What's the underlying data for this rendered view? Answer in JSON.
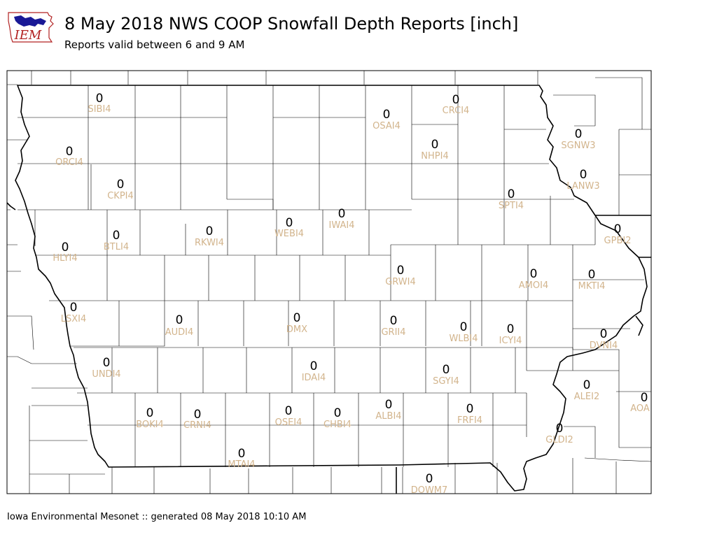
{
  "header": {
    "title": "8 May 2018 NWS COOP Snowfall Depth Reports [inch]",
    "subtitle": "Reports valid between 6 and 9 AM"
  },
  "logo": {
    "text": "IEM",
    "color": "#b22222",
    "state_color": "#00008b"
  },
  "footer": {
    "text": "Iowa Environmental Mesonet :: generated 08 May 2018 10:10 AM"
  },
  "map": {
    "label_color": "#d2b48c",
    "value_color": "#000000",
    "stations": [
      {
        "id": "SIBI4",
        "value": "0"
      },
      {
        "id": "CRCI4",
        "value": "0"
      },
      {
        "id": "OSAI4",
        "value": "0"
      },
      {
        "id": "SGNW3",
        "value": "0"
      },
      {
        "id": "NHPI4",
        "value": "0"
      },
      {
        "id": "ORCI4",
        "value": "0"
      },
      {
        "id": "LANW3",
        "value": "0"
      },
      {
        "id": "CKPI4",
        "value": "0"
      },
      {
        "id": "SPTI4",
        "value": "0"
      },
      {
        "id": "IWAI4",
        "value": "0"
      },
      {
        "id": "WEBI4",
        "value": "0"
      },
      {
        "id": "GPBI2",
        "value": "0"
      },
      {
        "id": "RKWI4",
        "value": "0"
      },
      {
        "id": "BTLI4",
        "value": "0"
      },
      {
        "id": "HLYI4",
        "value": "0"
      },
      {
        "id": "GRWI4",
        "value": "0"
      },
      {
        "id": "AMOI4",
        "value": "0"
      },
      {
        "id": "MKTI4",
        "value": "0"
      },
      {
        "id": "LSXI4",
        "value": "0"
      },
      {
        "id": "DMX",
        "value": "0"
      },
      {
        "id": "AUDI4",
        "value": "0"
      },
      {
        "id": "GRII4",
        "value": "0"
      },
      {
        "id": "WLBI4",
        "value": "0"
      },
      {
        "id": "ICYI4",
        "value": "0"
      },
      {
        "id": "DVNI4",
        "value": "0"
      },
      {
        "id": "UNDI4",
        "value": "0"
      },
      {
        "id": "IDAI4",
        "value": "0"
      },
      {
        "id": "SGYI4",
        "value": "0"
      },
      {
        "id": "ALEI2",
        "value": "0"
      },
      {
        "id": "AOA",
        "value": "0"
      },
      {
        "id": "BOKI4",
        "value": "0"
      },
      {
        "id": "CRNI4",
        "value": "0"
      },
      {
        "id": "OSEI4",
        "value": "0"
      },
      {
        "id": "CHBI4",
        "value": "0"
      },
      {
        "id": "ALBI4",
        "value": "0"
      },
      {
        "id": "FRFI4",
        "value": "0"
      },
      {
        "id": "GLDI2",
        "value": "0"
      },
      {
        "id": "MTAI4",
        "value": "0"
      },
      {
        "id": "DOWM7",
        "value": "0"
      }
    ]
  }
}
